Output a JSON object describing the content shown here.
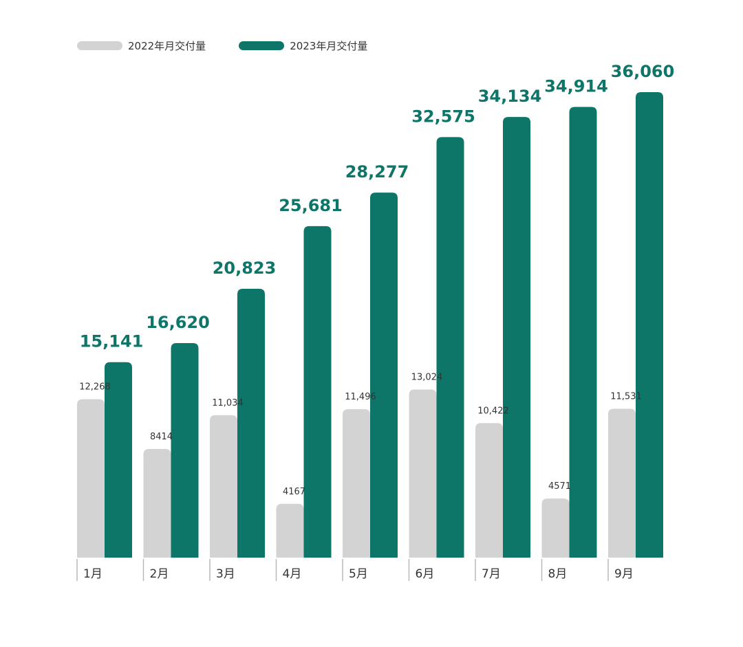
{
  "colors": {
    "series_2022": "#d3d3d3",
    "series_2023": "#0e7668",
    "label_2023": "#0e7668",
    "label_2022": "#333333",
    "axis_text": "#333333",
    "divider": "#b8b8b8"
  },
  "legend": {
    "items": [
      {
        "label": "2022年月交付量"
      },
      {
        "label": "2023年月交付量"
      }
    ]
  },
  "chart_data": {
    "type": "bar",
    "categories": [
      "1月",
      "2月",
      "3月",
      "4月",
      "5月",
      "6月",
      "7月",
      "8月",
      "9月"
    ],
    "series": [
      {
        "name": "2022年月交付量",
        "values": [
          12268,
          8414,
          11034,
          4167,
          11496,
          13024,
          10422,
          4571,
          11531
        ],
        "labels": [
          "12,268",
          "8414",
          "11,034",
          "4167",
          "11,496",
          "13,024",
          "10,422",
          "4571",
          "11,531"
        ]
      },
      {
        "name": "2023年月交付量",
        "values": [
          15141,
          16620,
          20823,
          25681,
          28277,
          32575,
          34134,
          34914,
          36060
        ],
        "labels": [
          "15,141",
          "16,620",
          "20,823",
          "25,681",
          "28,277",
          "32,575",
          "34,134",
          "34,914",
          "36,060"
        ]
      }
    ],
    "ylim": [
      0,
      40000
    ],
    "grid": false,
    "legend_position": "top-left"
  }
}
